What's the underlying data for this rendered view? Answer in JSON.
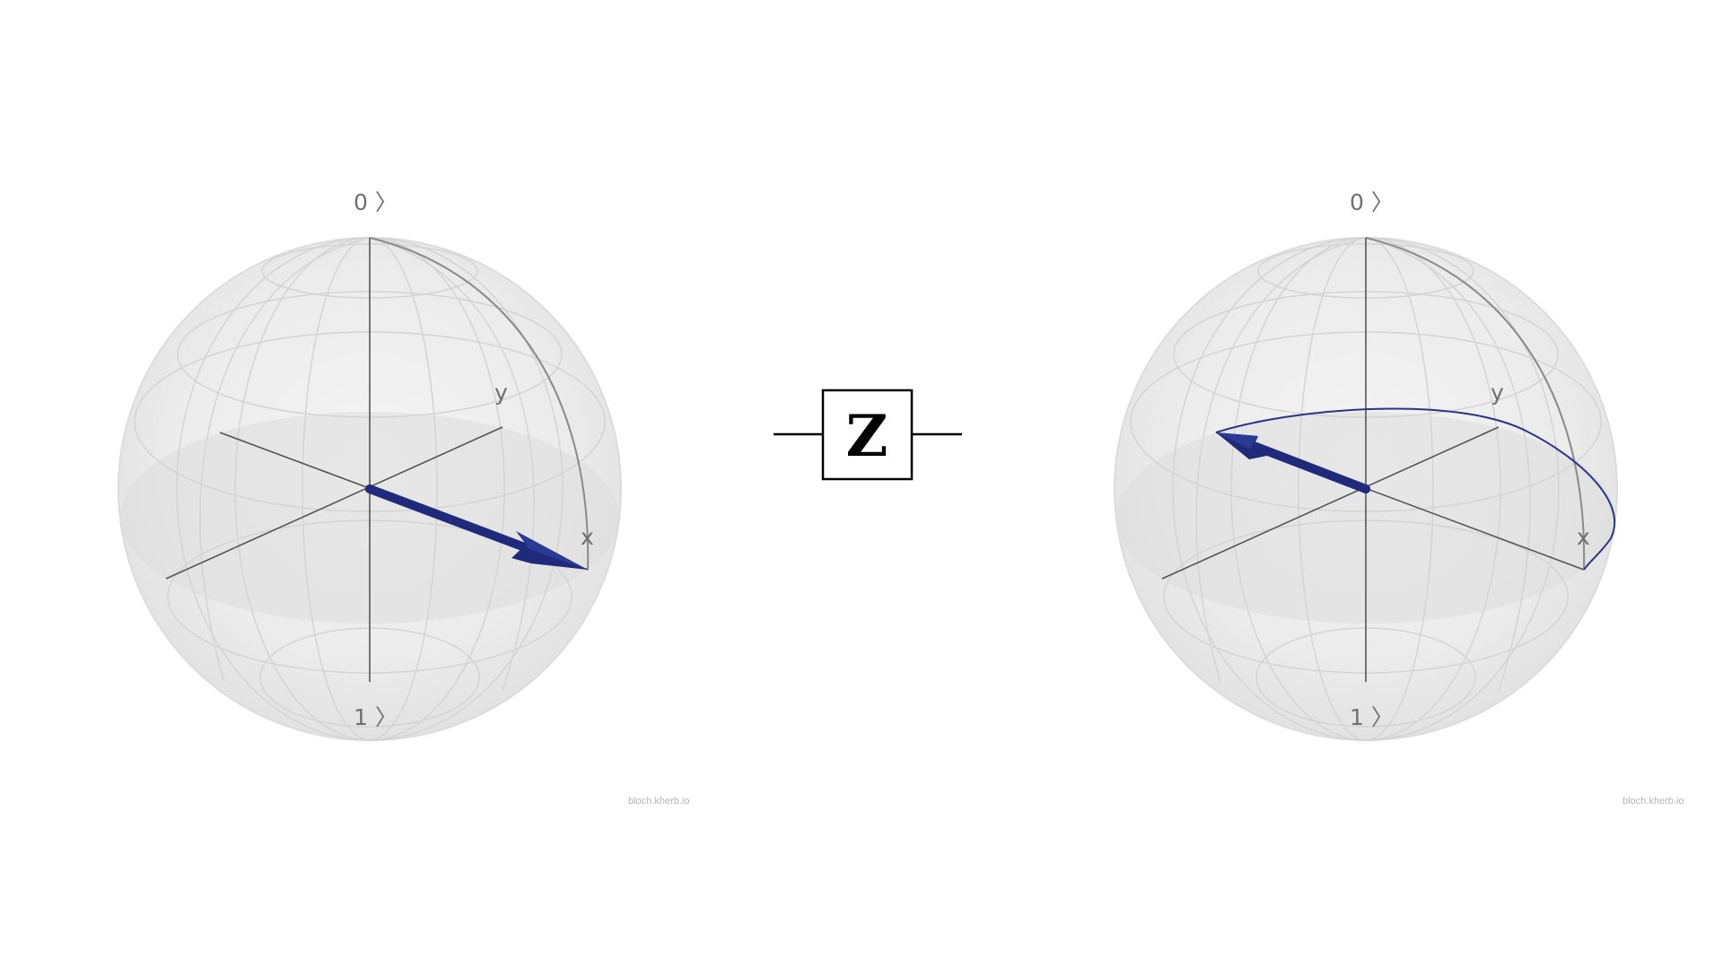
{
  "gate": {
    "label": "Z"
  },
  "bloch_before": {
    "label_zero": "0 〉",
    "label_one": "1 〉",
    "label_x": "x",
    "label_y": "y",
    "watermark": "bloch.kherb.io",
    "state_vector_color": "#1f2a7a",
    "show_path": false
  },
  "bloch_after": {
    "label_zero": "0 〉",
    "label_one": "1 〉",
    "label_x": "x",
    "label_y": "y",
    "watermark": "bloch.kherb.io",
    "state_vector_color": "#1f2a7a",
    "path_color": "#2a3585",
    "show_path": true
  }
}
